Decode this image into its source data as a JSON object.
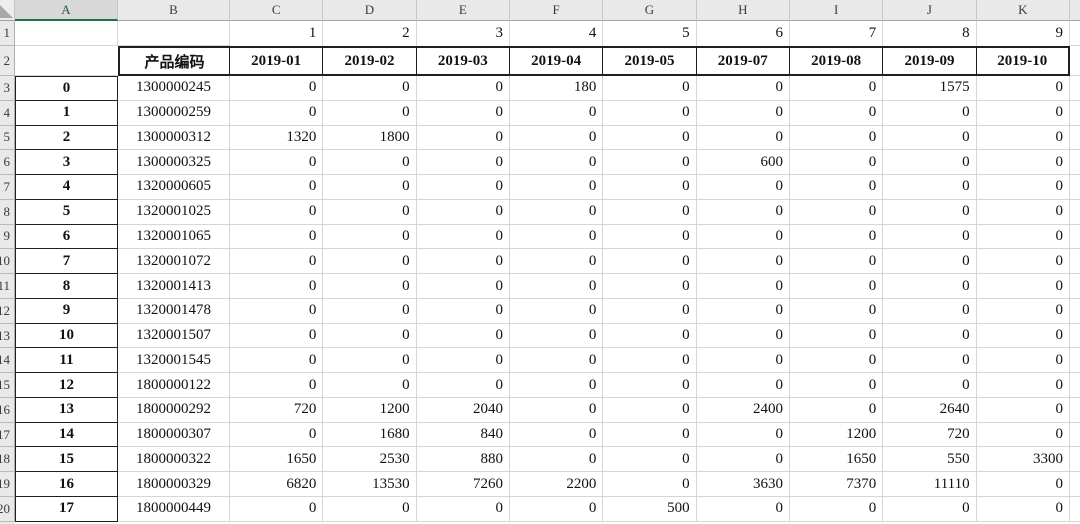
{
  "sheet": {
    "column_letters": [
      "A",
      "B",
      "C",
      "D",
      "E",
      "F",
      "G",
      "H",
      "I",
      "J",
      "K"
    ],
    "selected_column": "A",
    "row_numbers": [
      "1",
      "2",
      "3",
      "4",
      "5",
      "6",
      "7",
      "8",
      "9",
      "10",
      "11",
      "12",
      "13",
      "14",
      "15",
      "16",
      "17",
      "18",
      "19",
      "20"
    ],
    "colors": {
      "accent_green": "#1e7145",
      "header_bg": "#e9e9e9",
      "selected_header_bg": "#d8d8d8",
      "gridline": "#d6d6d6",
      "table_border": "#1f1f1f"
    }
  },
  "table": {
    "column_numbers": [
      "1",
      "2",
      "3",
      "4",
      "5",
      "6",
      "7",
      "8",
      "9"
    ],
    "index_header": "产品编码",
    "columns": [
      "2019-01",
      "2019-02",
      "2019-03",
      "2019-04",
      "2019-05",
      "2019-07",
      "2019-08",
      "2019-09",
      "2019-10"
    ],
    "rows": [
      {
        "index": "0",
        "code": "1300000245",
        "values": [
          "0",
          "0",
          "0",
          "180",
          "0",
          "0",
          "0",
          "1575",
          "0"
        ]
      },
      {
        "index": "1",
        "code": "1300000259",
        "values": [
          "0",
          "0",
          "0",
          "0",
          "0",
          "0",
          "0",
          "0",
          "0"
        ]
      },
      {
        "index": "2",
        "code": "1300000312",
        "values": [
          "1320",
          "1800",
          "0",
          "0",
          "0",
          "0",
          "0",
          "0",
          "0"
        ]
      },
      {
        "index": "3",
        "code": "1300000325",
        "values": [
          "0",
          "0",
          "0",
          "0",
          "0",
          "600",
          "0",
          "0",
          "0"
        ]
      },
      {
        "index": "4",
        "code": "1320000605",
        "values": [
          "0",
          "0",
          "0",
          "0",
          "0",
          "0",
          "0",
          "0",
          "0"
        ]
      },
      {
        "index": "5",
        "code": "1320001025",
        "values": [
          "0",
          "0",
          "0",
          "0",
          "0",
          "0",
          "0",
          "0",
          "0"
        ]
      },
      {
        "index": "6",
        "code": "1320001065",
        "values": [
          "0",
          "0",
          "0",
          "0",
          "0",
          "0",
          "0",
          "0",
          "0"
        ]
      },
      {
        "index": "7",
        "code": "1320001072",
        "values": [
          "0",
          "0",
          "0",
          "0",
          "0",
          "0",
          "0",
          "0",
          "0"
        ]
      },
      {
        "index": "8",
        "code": "1320001413",
        "values": [
          "0",
          "0",
          "0",
          "0",
          "0",
          "0",
          "0",
          "0",
          "0"
        ]
      },
      {
        "index": "9",
        "code": "1320001478",
        "values": [
          "0",
          "0",
          "0",
          "0",
          "0",
          "0",
          "0",
          "0",
          "0"
        ]
      },
      {
        "index": "10",
        "code": "1320001507",
        "values": [
          "0",
          "0",
          "0",
          "0",
          "0",
          "0",
          "0",
          "0",
          "0"
        ]
      },
      {
        "index": "11",
        "code": "1320001545",
        "values": [
          "0",
          "0",
          "0",
          "0",
          "0",
          "0",
          "0",
          "0",
          "0"
        ]
      },
      {
        "index": "12",
        "code": "1800000122",
        "values": [
          "0",
          "0",
          "0",
          "0",
          "0",
          "0",
          "0",
          "0",
          "0"
        ]
      },
      {
        "index": "13",
        "code": "1800000292",
        "values": [
          "720",
          "1200",
          "2040",
          "0",
          "0",
          "2400",
          "0",
          "2640",
          "0"
        ]
      },
      {
        "index": "14",
        "code": "1800000307",
        "values": [
          "0",
          "1680",
          "840",
          "0",
          "0",
          "0",
          "1200",
          "720",
          "0"
        ]
      },
      {
        "index": "15",
        "code": "1800000322",
        "values": [
          "1650",
          "2530",
          "880",
          "0",
          "0",
          "0",
          "1650",
          "550",
          "3300"
        ]
      },
      {
        "index": "16",
        "code": "1800000329",
        "values": [
          "6820",
          "13530",
          "7260",
          "2200",
          "0",
          "3630",
          "7370",
          "11110",
          "0"
        ]
      },
      {
        "index": "17",
        "code": "1800000449",
        "values": [
          "0",
          "0",
          "0",
          "0",
          "500",
          "0",
          "0",
          "0",
          "0"
        ]
      }
    ]
  }
}
